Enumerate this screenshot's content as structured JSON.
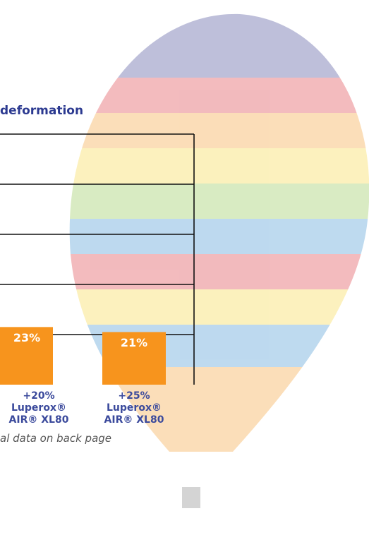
{
  "chart_data": {
    "type": "bar",
    "title": "deformation",
    "categories": [
      "+20%\nLuperox®\nAIR® XL80",
      "+25%\nLuperox®\nAIR® XL80"
    ],
    "values": [
      23,
      21
    ],
    "value_labels": [
      "23%",
      "21%"
    ],
    "color": "#f7941d",
    "ylim": [
      0,
      100
    ],
    "yticks": [
      20,
      40,
      60,
      80,
      100
    ],
    "grid": true,
    "footnote": "al data on back page"
  }
}
